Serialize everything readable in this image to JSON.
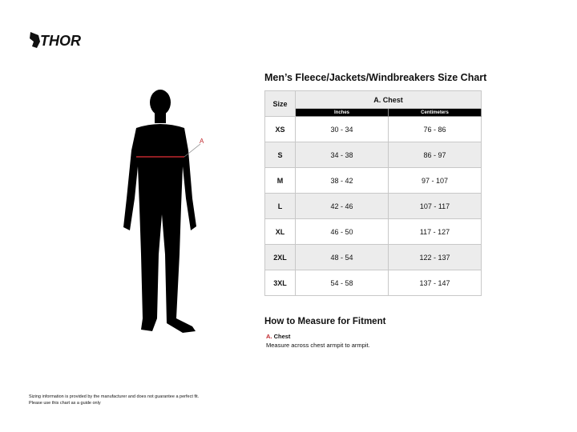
{
  "brand": "THOR",
  "title": "Men’s Fleece/Jackets/Windbreakers Size Chart",
  "table": {
    "size_header": "Size",
    "group_header": "A. Chest",
    "sub_headers": [
      "Inches",
      "Centimeters"
    ],
    "rows": [
      [
        "XS",
        "30 - 34",
        "76 - 86"
      ],
      [
        "S",
        "34 - 38",
        "86 - 97"
      ],
      [
        "M",
        "38 - 42",
        "97 - 107"
      ],
      [
        "L",
        "42 - 46",
        "107 - 117"
      ],
      [
        "XL",
        "46 - 50",
        "117 - 127"
      ],
      [
        "2XL",
        "48 - 54",
        "122 - 137"
      ],
      [
        "3XL",
        "54 - 58",
        "137 - 147"
      ]
    ]
  },
  "figure": {
    "marker_label": "A",
    "marker_color": "#c0272d"
  },
  "howto": {
    "title": "How to Measure for Fitment",
    "letter": "A.",
    "name": "Chest",
    "desc": "Measure across chest armpit to armpit."
  },
  "disclaimer": [
    "Sizing information is provided by the manufacturer and does not guarantee a perfect fit.",
    "Please use this chart as a guide only"
  ]
}
